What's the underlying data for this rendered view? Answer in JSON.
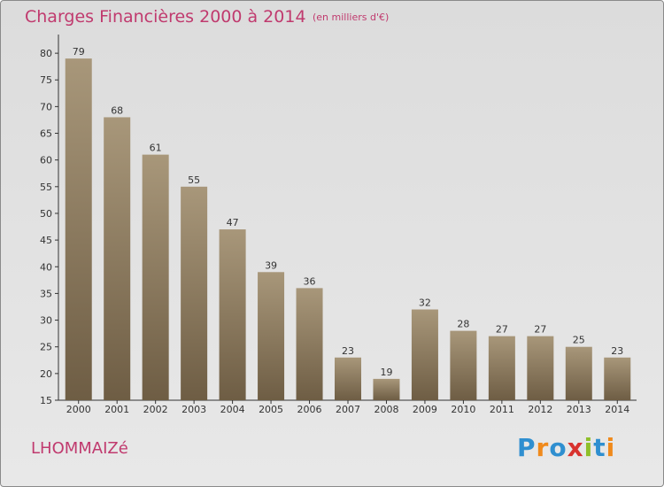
{
  "title": "Charges Financières 2000 à 2014",
  "subtitle": "(en milliers d'€)",
  "commune": "LHOMMAIZé",
  "logo": {
    "text": "Proxiti",
    "colors": [
      "#2f8fd0",
      "#f08a1c",
      "#2f8fd0",
      "#d8322e",
      "#8fbf2a",
      "#2f8fd0",
      "#f08a1c"
    ]
  },
  "chart_data": {
    "type": "bar",
    "title": "Charges Financières 2000 à 2014",
    "subtitle": "(en milliers d'€)",
    "categories": [
      "2000",
      "2001",
      "2002",
      "2003",
      "2004",
      "2005",
      "2006",
      "2007",
      "2008",
      "2009",
      "2010",
      "2011",
      "2012",
      "2013",
      "2014"
    ],
    "values": [
      79,
      68,
      61,
      55,
      47,
      39,
      36,
      23,
      19,
      32,
      28,
      27,
      27,
      25,
      23
    ],
    "yticks": [
      15,
      20,
      25,
      30,
      35,
      40,
      45,
      50,
      55,
      60,
      65,
      70,
      75,
      80
    ],
    "ylim": [
      15,
      82.5
    ],
    "grid": false,
    "bar_color_top": "#a8977a",
    "bar_color_bottom": "#6e5d44",
    "axis_color": "#333333",
    "label_color": "#333333"
  }
}
